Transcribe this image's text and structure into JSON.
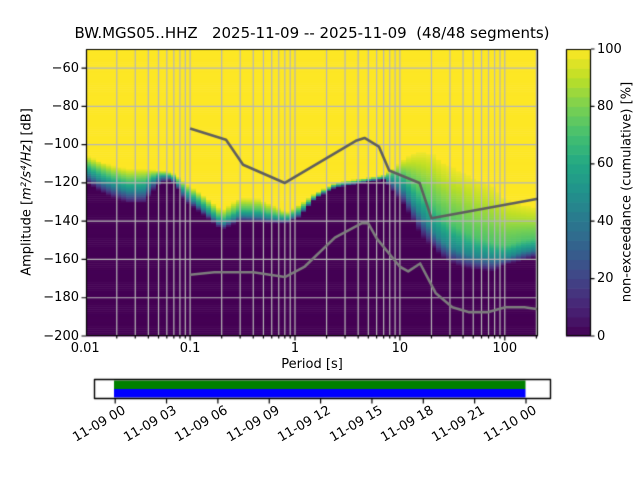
{
  "title": "BW.MGS05..HHZ   2025-11-09 -- 2025-11-09  (48/48 segments)",
  "axes": {
    "ylabel_prefix": "Amplitude [",
    "ylabel_math": "m²/s⁴/Hz",
    "ylabel_suffix": "] [dB]",
    "xlabel": "Period [s]",
    "x_ticks": [
      {
        "label": "0.01",
        "period": 0.01
      },
      {
        "label": "0.1",
        "period": 0.1
      },
      {
        "label": "1",
        "period": 1
      },
      {
        "label": "10",
        "period": 10
      },
      {
        "label": "100",
        "period": 100
      }
    ],
    "y_ticks": [
      {
        "label": "−60",
        "db": -60
      },
      {
        "label": "−80",
        "db": -80
      },
      {
        "label": "−100",
        "db": -100
      },
      {
        "label": "−120",
        "db": -120
      },
      {
        "label": "−140",
        "db": -140
      },
      {
        "label": "−160",
        "db": -160
      },
      {
        "label": "−180",
        "db": -180
      },
      {
        "label": "−200",
        "db": -200
      }
    ]
  },
  "colorbar": {
    "label": "non-exceedance (cumulative) [%]",
    "ticks": [
      {
        "label": "0",
        "value": 0
      },
      {
        "label": "20",
        "value": 20
      },
      {
        "label": "40",
        "value": 40
      },
      {
        "label": "60",
        "value": 60
      },
      {
        "label": "80",
        "value": 80
      },
      {
        "label": "100",
        "value": 100
      }
    ],
    "steps": 30
  },
  "timeline": {
    "tick_labels": [
      "11-09 00",
      "11-09 03",
      "11-09 06",
      "11-09 09",
      "11-09 12",
      "11-09 15",
      "11-09 18",
      "11-09 21",
      "11-10 00"
    ],
    "coverage_color_top": "#008000",
    "coverage_color_bottom": "#0000ff"
  },
  "chart_data": {
    "type": "heatmap",
    "subtype": "ppsd-cumulative-spectrogram",
    "station": "BW.MGS05..HHZ",
    "date_range": "2025-11-09 -- 2025-11-09",
    "segments_used": 48,
    "segments_total": 48,
    "x_axis": {
      "label": "Period [s]",
      "scale": "log",
      "min": 0.0098,
      "max": 207
    },
    "y_axis": {
      "label": "Amplitude [m2/s4/Hz] [dB]",
      "min": -200,
      "max": -50
    },
    "color_axis": {
      "label": "non-exceedance (cumulative) [%]",
      "min": 0,
      "max": 100
    },
    "grid": true,
    "colormap": "viridis",
    "colormap_stops": [
      "#440154",
      "#482475",
      "#414487",
      "#355f8d",
      "#2a788e",
      "#21918c",
      "#22a884",
      "#44bf70",
      "#7ad151",
      "#bddf26",
      "#fde725"
    ],
    "band_levels": [
      0.98,
      0.72,
      0.45,
      0.02
    ],
    "cdf_band": {
      "comment": "dB level of the cumulative distribution at 98/72/45/2 % non-exceedance vs period (s). Above db_98 the map is 100% yellow, below db_02 it is 0% dark purple.",
      "periods_s": [
        0.0098,
        0.014,
        0.019,
        0.026,
        0.036,
        0.048,
        0.06,
        0.072,
        0.09,
        0.14,
        0.2,
        0.3,
        0.45,
        0.65,
        0.85,
        1.1,
        1.55,
        2.4,
        3.7,
        5.5,
        7,
        9,
        11,
        14,
        17,
        21,
        27,
        39,
        52,
        80,
        100,
        150,
        207
      ],
      "db_98": [
        -105.5,
        -109,
        -111.5,
        -113,
        -113,
        -113.5,
        -114,
        -115.5,
        -120,
        -127.5,
        -134.5,
        -128,
        -128.5,
        -132.5,
        -135.5,
        -131.5,
        -125.5,
        -120,
        -118.3,
        -117,
        -115.8,
        -112,
        -107.5,
        -104.3,
        -103.8,
        -105.5,
        -110.5,
        -114.5,
        -118,
        -122.5,
        -128.5,
        -131.5,
        -133
      ],
      "db_72": [
        -110,
        -114,
        -117,
        -119,
        -118.5,
        -115.5,
        -115.5,
        -117,
        -123,
        -131,
        -138.5,
        -133.5,
        -134,
        -136.5,
        -137.5,
        -134,
        -126.8,
        -121,
        -119.3,
        -117.8,
        -116.8,
        -115,
        -116,
        -122,
        -127,
        -132,
        -139,
        -145,
        -148.5,
        -151.5,
        -153,
        -150,
        -149
      ],
      "db_45": [
        -114,
        -119,
        -122,
        -124.5,
        -124,
        -117.5,
        -116.5,
        -118.5,
        -126,
        -134.5,
        -141.5,
        -137,
        -137.5,
        -139,
        -139.5,
        -136,
        -127.6,
        -121.8,
        -120,
        -118.4,
        -117.5,
        -120,
        -124,
        -133,
        -139,
        -146,
        -152,
        -156.5,
        -158.5,
        -159.5,
        -159.5,
        -156,
        -154.5
      ],
      "db_02": [
        -119,
        -124.5,
        -128,
        -130.5,
        -130.5,
        -122,
        -118.5,
        -120.5,
        -129.5,
        -137.5,
        -144.5,
        -140,
        -140.5,
        -141,
        -141,
        -138,
        -128.4,
        -122.5,
        -120.8,
        -119,
        -118.3,
        -125.5,
        -131.5,
        -142,
        -149.5,
        -154,
        -160.3,
        -163.8,
        -165.2,
        -166.2,
        -162.7,
        -160.5,
        -158.5
      ]
    },
    "noise_models": {
      "high_noise_model": [
        [
          0.1,
          -91.5
        ],
        [
          0.22,
          -97.4
        ],
        [
          0.32,
          -110.5
        ],
        [
          0.8,
          -120
        ],
        [
          3.8,
          -98
        ],
        [
          4.6,
          -96.5
        ],
        [
          6.3,
          -101
        ],
        [
          7.9,
          -113.5
        ],
        [
          15.4,
          -120
        ],
        [
          20,
          -138.5
        ],
        [
          207,
          -128.3
        ]
      ],
      "low_noise_model": [
        [
          0.1,
          -168
        ],
        [
          0.17,
          -166.7
        ],
        [
          0.4,
          -166.7
        ],
        [
          0.8,
          -169.2
        ],
        [
          1.24,
          -163.7
        ],
        [
          2.4,
          -148.6
        ],
        [
          4.3,
          -141.1
        ],
        [
          5,
          -141.1
        ],
        [
          6,
          -149
        ],
        [
          10,
          -163.8
        ],
        [
          12,
          -166.2
        ],
        [
          15.6,
          -162.1
        ],
        [
          21.9,
          -177.5
        ],
        [
          31.6,
          -185
        ],
        [
          45,
          -187.5
        ],
        [
          70,
          -187.5
        ],
        [
          101,
          -185
        ],
        [
          154,
          -185
        ],
        [
          207,
          -186
        ]
      ],
      "high_model_color": "#5f5f5f",
      "low_model_color": "#7d7d7d"
    }
  }
}
